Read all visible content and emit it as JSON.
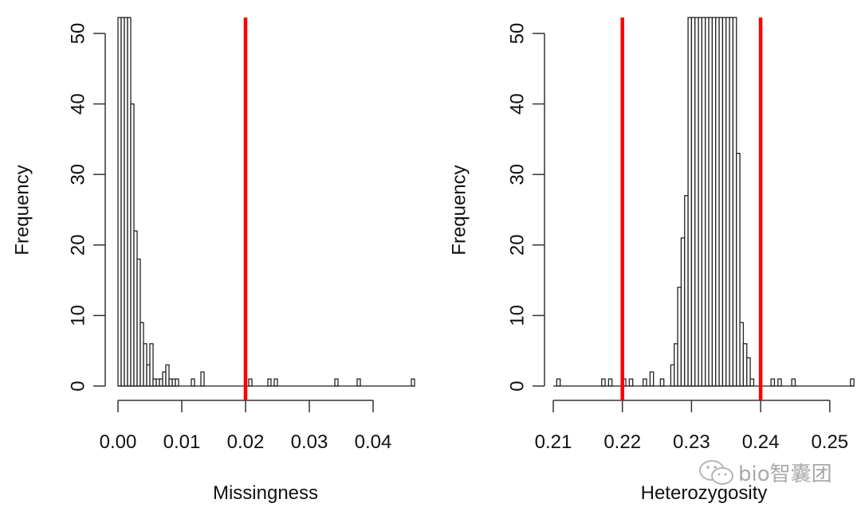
{
  "chart_data": [
    {
      "type": "bar",
      "subtype": "histogram",
      "title": "",
      "xlabel": "Missingness",
      "ylabel": "Frequency",
      "xlim": [
        0.0,
        0.0465
      ],
      "ylim": [
        0,
        50
      ],
      "x_ticks": [
        "0.00",
        "0.01",
        "0.02",
        "0.03",
        "0.04"
      ],
      "x_tick_values": [
        0.0,
        0.01,
        0.02,
        0.03,
        0.04
      ],
      "y_ticks": [
        "0",
        "10",
        "20",
        "30",
        "40",
        "50"
      ],
      "y_tick_values": [
        0,
        10,
        20,
        30,
        40,
        50
      ],
      "bin_width": 0.0005,
      "bins_note": "bins 0-3 exceed the y-axis limit (clipped at 50)",
      "bins": [
        {
          "start": 0.0,
          "count": 52,
          "clipped": true
        },
        {
          "start": 0.0005,
          "count": 52,
          "clipped": true
        },
        {
          "start": 0.001,
          "count": 52,
          "clipped": true
        },
        {
          "start": 0.0015,
          "count": 52,
          "clipped": true
        },
        {
          "start": 0.002,
          "count": 40
        },
        {
          "start": 0.0025,
          "count": 22
        },
        {
          "start": 0.003,
          "count": 18
        },
        {
          "start": 0.0035,
          "count": 9
        },
        {
          "start": 0.004,
          "count": 6
        },
        {
          "start": 0.0045,
          "count": 3
        },
        {
          "start": 0.005,
          "count": 6
        },
        {
          "start": 0.0055,
          "count": 1
        },
        {
          "start": 0.006,
          "count": 1
        },
        {
          "start": 0.0065,
          "count": 1
        },
        {
          "start": 0.007,
          "count": 2
        },
        {
          "start": 0.0075,
          "count": 3
        },
        {
          "start": 0.008,
          "count": 1
        },
        {
          "start": 0.0085,
          "count": 1
        },
        {
          "start": 0.009,
          "count": 1
        },
        {
          "start": 0.0115,
          "count": 1
        },
        {
          "start": 0.013,
          "count": 2
        },
        {
          "start": 0.0205,
          "count": 1
        },
        {
          "start": 0.0235,
          "count": 1
        },
        {
          "start": 0.0245,
          "count": 1
        },
        {
          "start": 0.034,
          "count": 1
        },
        {
          "start": 0.0375,
          "count": 1
        },
        {
          "start": 0.046,
          "count": 1
        }
      ],
      "threshold_lines": [
        {
          "x": 0.02,
          "color": "#ff0000"
        }
      ],
      "grid": false,
      "legend": null
    },
    {
      "type": "bar",
      "subtype": "histogram",
      "title": "",
      "xlabel": "Heterozygosity",
      "ylabel": "Frequency",
      "xlim": [
        0.21,
        0.2535
      ],
      "ylim": [
        0,
        50
      ],
      "x_ticks": [
        "0.21",
        "0.22",
        "0.23",
        "0.24",
        "0.25"
      ],
      "x_tick_values": [
        0.21,
        0.22,
        0.23,
        0.24,
        0.25
      ],
      "y_ticks": [
        "0",
        "10",
        "20",
        "30",
        "40",
        "50"
      ],
      "y_tick_values": [
        0,
        10,
        20,
        30,
        40,
        50
      ],
      "bin_width": 0.0005,
      "bins_note": "bins 0.2295-0.2365 exceed the y-axis limit (clipped at 50)",
      "bins": [
        {
          "start": 0.2105,
          "count": 1
        },
        {
          "start": 0.217,
          "count": 1
        },
        {
          "start": 0.218,
          "count": 1
        },
        {
          "start": 0.22,
          "count": 1
        },
        {
          "start": 0.221,
          "count": 1
        },
        {
          "start": 0.223,
          "count": 1
        },
        {
          "start": 0.224,
          "count": 2
        },
        {
          "start": 0.2255,
          "count": 1
        },
        {
          "start": 0.227,
          "count": 3
        },
        {
          "start": 0.2275,
          "count": 6
        },
        {
          "start": 0.228,
          "count": 14
        },
        {
          "start": 0.2285,
          "count": 21
        },
        {
          "start": 0.229,
          "count": 27
        },
        {
          "start": 0.2295,
          "count": 52,
          "clipped": true
        },
        {
          "start": 0.23,
          "count": 52,
          "clipped": true
        },
        {
          "start": 0.2305,
          "count": 52,
          "clipped": true
        },
        {
          "start": 0.231,
          "count": 52,
          "clipped": true
        },
        {
          "start": 0.2315,
          "count": 52,
          "clipped": true
        },
        {
          "start": 0.232,
          "count": 52,
          "clipped": true
        },
        {
          "start": 0.2325,
          "count": 52,
          "clipped": true
        },
        {
          "start": 0.233,
          "count": 52,
          "clipped": true
        },
        {
          "start": 0.2335,
          "count": 52,
          "clipped": true
        },
        {
          "start": 0.234,
          "count": 52,
          "clipped": true
        },
        {
          "start": 0.2345,
          "count": 52,
          "clipped": true
        },
        {
          "start": 0.235,
          "count": 52,
          "clipped": true
        },
        {
          "start": 0.2355,
          "count": 52,
          "clipped": true
        },
        {
          "start": 0.236,
          "count": 52,
          "clipped": true
        },
        {
          "start": 0.2365,
          "count": 33
        },
        {
          "start": 0.237,
          "count": 9
        },
        {
          "start": 0.2375,
          "count": 6
        },
        {
          "start": 0.238,
          "count": 4
        },
        {
          "start": 0.2385,
          "count": 1
        },
        {
          "start": 0.2415,
          "count": 1
        },
        {
          "start": 0.2425,
          "count": 1
        },
        {
          "start": 0.2445,
          "count": 1
        },
        {
          "start": 0.253,
          "count": 1
        }
      ],
      "threshold_lines": [
        {
          "x": 0.22,
          "color": "#ff0000"
        },
        {
          "x": 0.24,
          "color": "#ff0000"
        }
      ],
      "grid": false,
      "legend": null
    }
  ],
  "watermark": {
    "icon": "wechat-icon",
    "text": "bio智囊团"
  },
  "colors": {
    "bar_fill": "#ffffff",
    "bar_stroke": "#222222",
    "threshold": "#ff0000",
    "axis": "#333333"
  }
}
